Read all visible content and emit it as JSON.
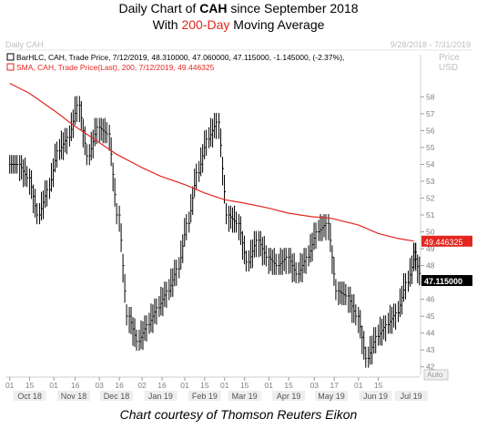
{
  "header": {
    "line1_a": "Daily Chart of ",
    "line1_ticker": "CAH",
    "line1_b": " since September 2018",
    "line2_a": "With ",
    "line2_highlight": "200-Day",
    "line2_b": " Moving Average"
  },
  "footer": "Chart courtesy of Thomson Reuters Eikon",
  "colors": {
    "sma": "#e3261f",
    "bars": "#000000",
    "panel_text": "#bfbfbf",
    "last_price_box": "#000000",
    "sma_box": "#e3261f"
  },
  "chart_data": {
    "type": "line",
    "panel_label": "Daily CAH",
    "date_range": "9/28/2018 - 7/31/2019",
    "price_label": "Price",
    "currency_label": "USD",
    "auto_label": "Auto",
    "legend": [
      {
        "text": "BarHLC, CAH, Trade Price, 7/12/2019, 48.310000, 47.060000, 47.115000, -1.145000, (-2.37%),",
        "color": "#000000",
        "icon": "bar-icon"
      },
      {
        "text": "SMA, CAH, Trade Price(Last), 200, 7/12/2019, 49.446325",
        "color": "#e3261f",
        "icon": "line-icon"
      }
    ],
    "last_price": "47.115000",
    "sma_value": "49.446325",
    "ylim": [
      41.5,
      60.5
    ],
    "y_ticks": [
      42,
      43,
      44,
      45,
      46,
      47,
      48,
      49,
      50,
      51,
      52,
      53,
      54,
      55,
      56,
      57,
      58
    ],
    "x_day_ticks": [
      "01",
      "15",
      "01",
      "16",
      "03",
      "16",
      "02",
      "16",
      "01",
      "15",
      "01",
      "15",
      "01",
      "15",
      "03",
      "17",
      "01",
      "15"
    ],
    "x_months": [
      "Oct 18",
      "Nov 18",
      "Dec 18",
      "Jan 19",
      "Feb 19",
      "Mar 19",
      "Apr 19",
      "May 19",
      "Jun 19",
      "Jul 19"
    ],
    "price_series": {
      "name": "",
      "x": [
        "2018-10-01",
        "2018-10-08",
        "2018-10-15",
        "2018-10-22",
        "2018-10-29",
        "2018-11-05",
        "2018-11-12",
        "2018-11-19",
        "2018-11-26",
        "2018-12-03",
        "2018-12-10",
        "2018-12-17",
        "2018-12-24",
        "2018-12-31",
        "2019-01-07",
        "2019-01-14",
        "2019-01-21",
        "2019-01-28",
        "2019-02-04",
        "2019-02-11",
        "2019-02-18",
        "2019-02-25",
        "2019-03-04",
        "2019-03-11",
        "2019-03-18",
        "2019-03-25",
        "2019-04-01",
        "2019-04-08",
        "2019-04-15",
        "2019-04-22",
        "2019-04-29",
        "2019-05-06",
        "2019-05-13",
        "2019-05-20",
        "2019-05-27",
        "2019-06-03",
        "2019-06-10",
        "2019-06-17",
        "2019-06-24",
        "2019-07-01",
        "2019-07-08",
        "2019-07-12"
      ],
      "close": [
        54.0,
        53.2,
        51.0,
        52.5,
        54.8,
        55.6,
        57.5,
        54.5,
        56.2,
        55.8,
        51.0,
        45.0,
        43.5,
        44.5,
        45.5,
        46.5,
        47.8,
        50.5,
        53.5,
        55.5,
        56.5,
        51.0,
        50.5,
        48.2,
        49.5,
        48.5,
        48.0,
        48.5,
        47.5,
        48.5,
        50.0,
        50.5,
        46.5,
        46.2,
        45.0,
        42.5,
        43.8,
        44.5,
        45.2,
        47.0,
        48.8,
        47.115
      ]
    },
    "sma_series": {
      "name": "",
      "x": [
        "2018-10-01",
        "2018-10-15",
        "2018-11-01",
        "2018-11-15",
        "2018-12-01",
        "2018-12-15",
        "2019-01-02",
        "2019-01-15",
        "2019-02-01",
        "2019-02-15",
        "2019-03-01",
        "2019-03-15",
        "2019-04-01",
        "2019-04-15",
        "2019-05-01",
        "2019-05-15",
        "2019-06-03",
        "2019-06-17",
        "2019-07-01",
        "2019-07-12"
      ],
      "values": [
        58.8,
        58.2,
        57.2,
        56.3,
        55.4,
        54.6,
        53.8,
        53.3,
        52.8,
        52.3,
        51.9,
        51.7,
        51.4,
        51.1,
        50.9,
        50.8,
        50.4,
        49.9,
        49.6,
        49.45
      ]
    }
  }
}
